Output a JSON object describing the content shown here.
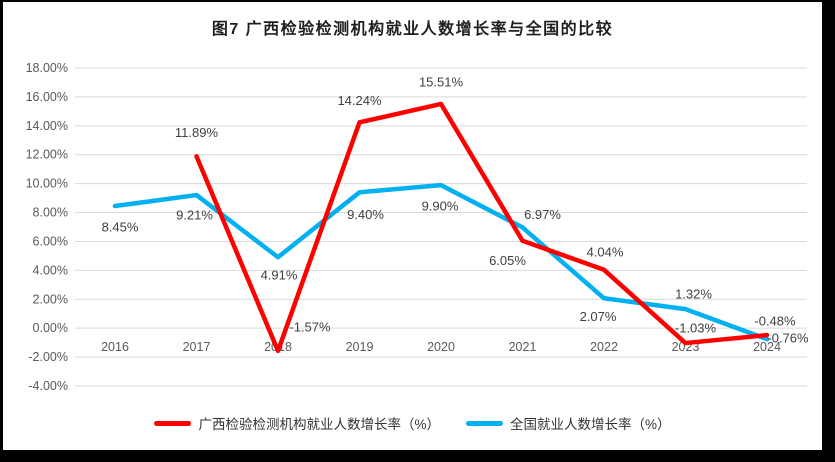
{
  "title": "图7 广西检验检测机构就业人数增长率与全国的比较",
  "chart_data": {
    "type": "line",
    "title": "图7 广西检验检测机构就业人数增长率与全国的比较",
    "categories": [
      "2016",
      "2017",
      "2018",
      "2019",
      "2020",
      "2021",
      "2022",
      "2023",
      "2024"
    ],
    "y_axis": {
      "min": -4,
      "max": 18,
      "step": 2,
      "format": "percent",
      "tick_labels": [
        "18.00%",
        "16.00%",
        "14.00%",
        "12.00%",
        "10.00%",
        "8.00%",
        "6.00%",
        "4.00%",
        "2.00%",
        "0.00%",
        "-2.00%",
        "-4.00%"
      ]
    },
    "grid": true,
    "legend_position": "bottom",
    "series": [
      {
        "name": "广西检验检测机构就业人数增长率（%）",
        "color": "#FF0000",
        "values": [
          null,
          11.89,
          -1.57,
          14.24,
          15.51,
          6.05,
          4.04,
          -1.03,
          -0.48
        ],
        "labels": [
          "",
          "11.89%",
          "-1.57%",
          "14.24%",
          "15.51%",
          "6.05%",
          "4.04%",
          "-1.03%",
          "-0.48%"
        ],
        "label_offsets": [
          [
            0,
            0
          ],
          [
            0,
            -24
          ],
          [
            32,
            -24
          ],
          [
            0,
            -22
          ],
          [
            0,
            -22
          ],
          [
            -15,
            20
          ],
          [
            1,
            -18
          ],
          [
            10,
            -15
          ],
          [
            8,
            -14
          ]
        ]
      },
      {
        "name": "全国就业人数增长率（%）",
        "color": "#00B0F0",
        "values": [
          8.45,
          9.21,
          4.91,
          9.4,
          9.9,
          6.97,
          2.07,
          1.32,
          -0.76
        ],
        "labels": [
          "8.45%",
          "9.21%",
          "4.91%",
          "9.40%",
          "9.90%",
          "6.97%",
          "2.07%",
          "1.32%",
          "-0.76%"
        ],
        "label_offsets": [
          [
            5,
            21
          ],
          [
            -2,
            20
          ],
          [
            1,
            18
          ],
          [
            6,
            22
          ],
          [
            -1,
            21
          ],
          [
            20,
            -13
          ],
          [
            -6,
            18
          ],
          [
            8,
            -15
          ],
          [
            21,
            -1
          ]
        ]
      }
    ]
  },
  "styles": {
    "background": "#FFFFFF",
    "frame_color": "#000000",
    "grid_color": "#D9D9D9",
    "tick_color": "#595959",
    "label_color": "#404040",
    "title_color": "#1F1F1F"
  }
}
